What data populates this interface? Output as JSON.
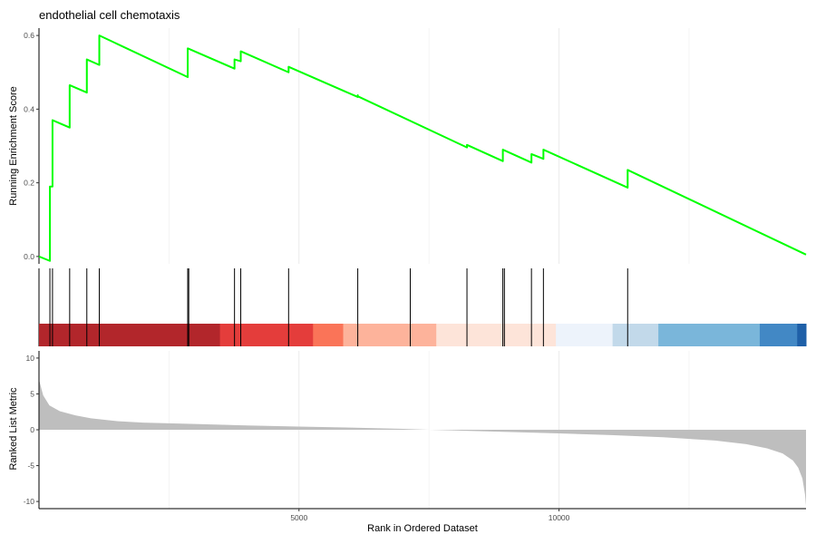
{
  "chart_data": {
    "type": "line",
    "title": "endothelial cell chemotaxis",
    "xlabel": "Rank in Ordered Dataset",
    "x_ticks": [
      5000,
      10000
    ],
    "x_tick_labels": [
      "5000",
      "10000"
    ],
    "xlim": [
      0,
      14750
    ],
    "grid": true,
    "legend": "none",
    "running_score": {
      "ylabel": "Running Enrichment Score",
      "ylim": [
        -0.02,
        0.62
      ],
      "y_ticks": [
        0.0,
        0.2,
        0.4,
        0.6
      ],
      "y_tick_labels": [
        "0.0",
        "0.2",
        "0.4",
        "0.6"
      ],
      "color": "#00ff00",
      "points": [
        [
          0,
          0.0
        ],
        [
          210,
          -0.012
        ],
        [
          210,
          0.19
        ],
        [
          260,
          0.19
        ],
        [
          260,
          0.37
        ],
        [
          590,
          0.35
        ],
        [
          590,
          0.465
        ],
        [
          920,
          0.445
        ],
        [
          920,
          0.535
        ],
        [
          1160,
          0.52
        ],
        [
          1160,
          0.6
        ],
        [
          2860,
          0.487
        ],
        [
          2860,
          0.565
        ],
        [
          3760,
          0.51
        ],
        [
          3760,
          0.535
        ],
        [
          3880,
          0.53
        ],
        [
          3880,
          0.557
        ],
        [
          4800,
          0.5
        ],
        [
          4800,
          0.515
        ],
        [
          6130,
          0.433
        ],
        [
          6130,
          0.438
        ],
        [
          6130,
          0.435
        ],
        [
          8230,
          0.296
        ],
        [
          8230,
          0.303
        ],
        [
          8920,
          0.259
        ],
        [
          8920,
          0.29
        ],
        [
          9470,
          0.255
        ],
        [
          9470,
          0.278
        ],
        [
          9700,
          0.265
        ],
        [
          9700,
          0.29
        ],
        [
          11320,
          0.187
        ],
        [
          11320,
          0.235
        ],
        [
          14750,
          0.005
        ]
      ]
    },
    "gene_hits": [
      210,
      260,
      590,
      920,
      1160,
      2860,
      2880,
      3760,
      3880,
      4800,
      6130,
      7140,
      8230,
      8920,
      8950,
      9470,
      9700,
      11320
    ],
    "rank_bands": [
      {
        "start": 0,
        "end": 3480,
        "color": "#b2262b"
      },
      {
        "start": 3480,
        "end": 5270,
        "color": "#e43d3b"
      },
      {
        "start": 5270,
        "end": 5850,
        "color": "#fa7458"
      },
      {
        "start": 5850,
        "end": 7640,
        "color": "#fdb39b"
      },
      {
        "start": 7640,
        "end": 9940,
        "color": "#fde4d9"
      },
      {
        "start": 9940,
        "end": 11030,
        "color": "#edf3fb"
      },
      {
        "start": 11030,
        "end": 11910,
        "color": "#c2d9ea"
      },
      {
        "start": 11910,
        "end": 13860,
        "color": "#7ab6da"
      },
      {
        "start": 13860,
        "end": 14580,
        "color": "#4288c5"
      },
      {
        "start": 14580,
        "end": 14750,
        "color": "#1f60a8"
      }
    ],
    "ranked_metric": {
      "ylabel": "Ranked List Metric",
      "ylim": [
        -11,
        11
      ],
      "y_ticks": [
        -10,
        -5,
        0,
        5,
        10
      ],
      "y_tick_labels": [
        "-10",
        "-5",
        "0",
        "5",
        "10"
      ],
      "fill_color": "#bebebe",
      "profile": [
        [
          0,
          7.0
        ],
        [
          80,
          4.8
        ],
        [
          200,
          3.4
        ],
        [
          400,
          2.6
        ],
        [
          700,
          2.0
        ],
        [
          1000,
          1.6
        ],
        [
          1500,
          1.2
        ],
        [
          2000,
          1.0
        ],
        [
          3000,
          0.8
        ],
        [
          4000,
          0.6
        ],
        [
          5000,
          0.45
        ],
        [
          6000,
          0.3
        ],
        [
          7000,
          0.12
        ],
        [
          7500,
          0.0
        ],
        [
          8000,
          -0.1
        ],
        [
          9000,
          -0.3
        ],
        [
          10000,
          -0.5
        ],
        [
          11000,
          -0.75
        ],
        [
          12000,
          -1.05
        ],
        [
          13000,
          -1.5
        ],
        [
          13600,
          -2.0
        ],
        [
          14000,
          -2.6
        ],
        [
          14300,
          -3.3
        ],
        [
          14500,
          -4.3
        ],
        [
          14600,
          -5.3
        ],
        [
          14680,
          -6.8
        ],
        [
          14730,
          -9.0
        ],
        [
          14750,
          -10.6
        ]
      ]
    }
  }
}
